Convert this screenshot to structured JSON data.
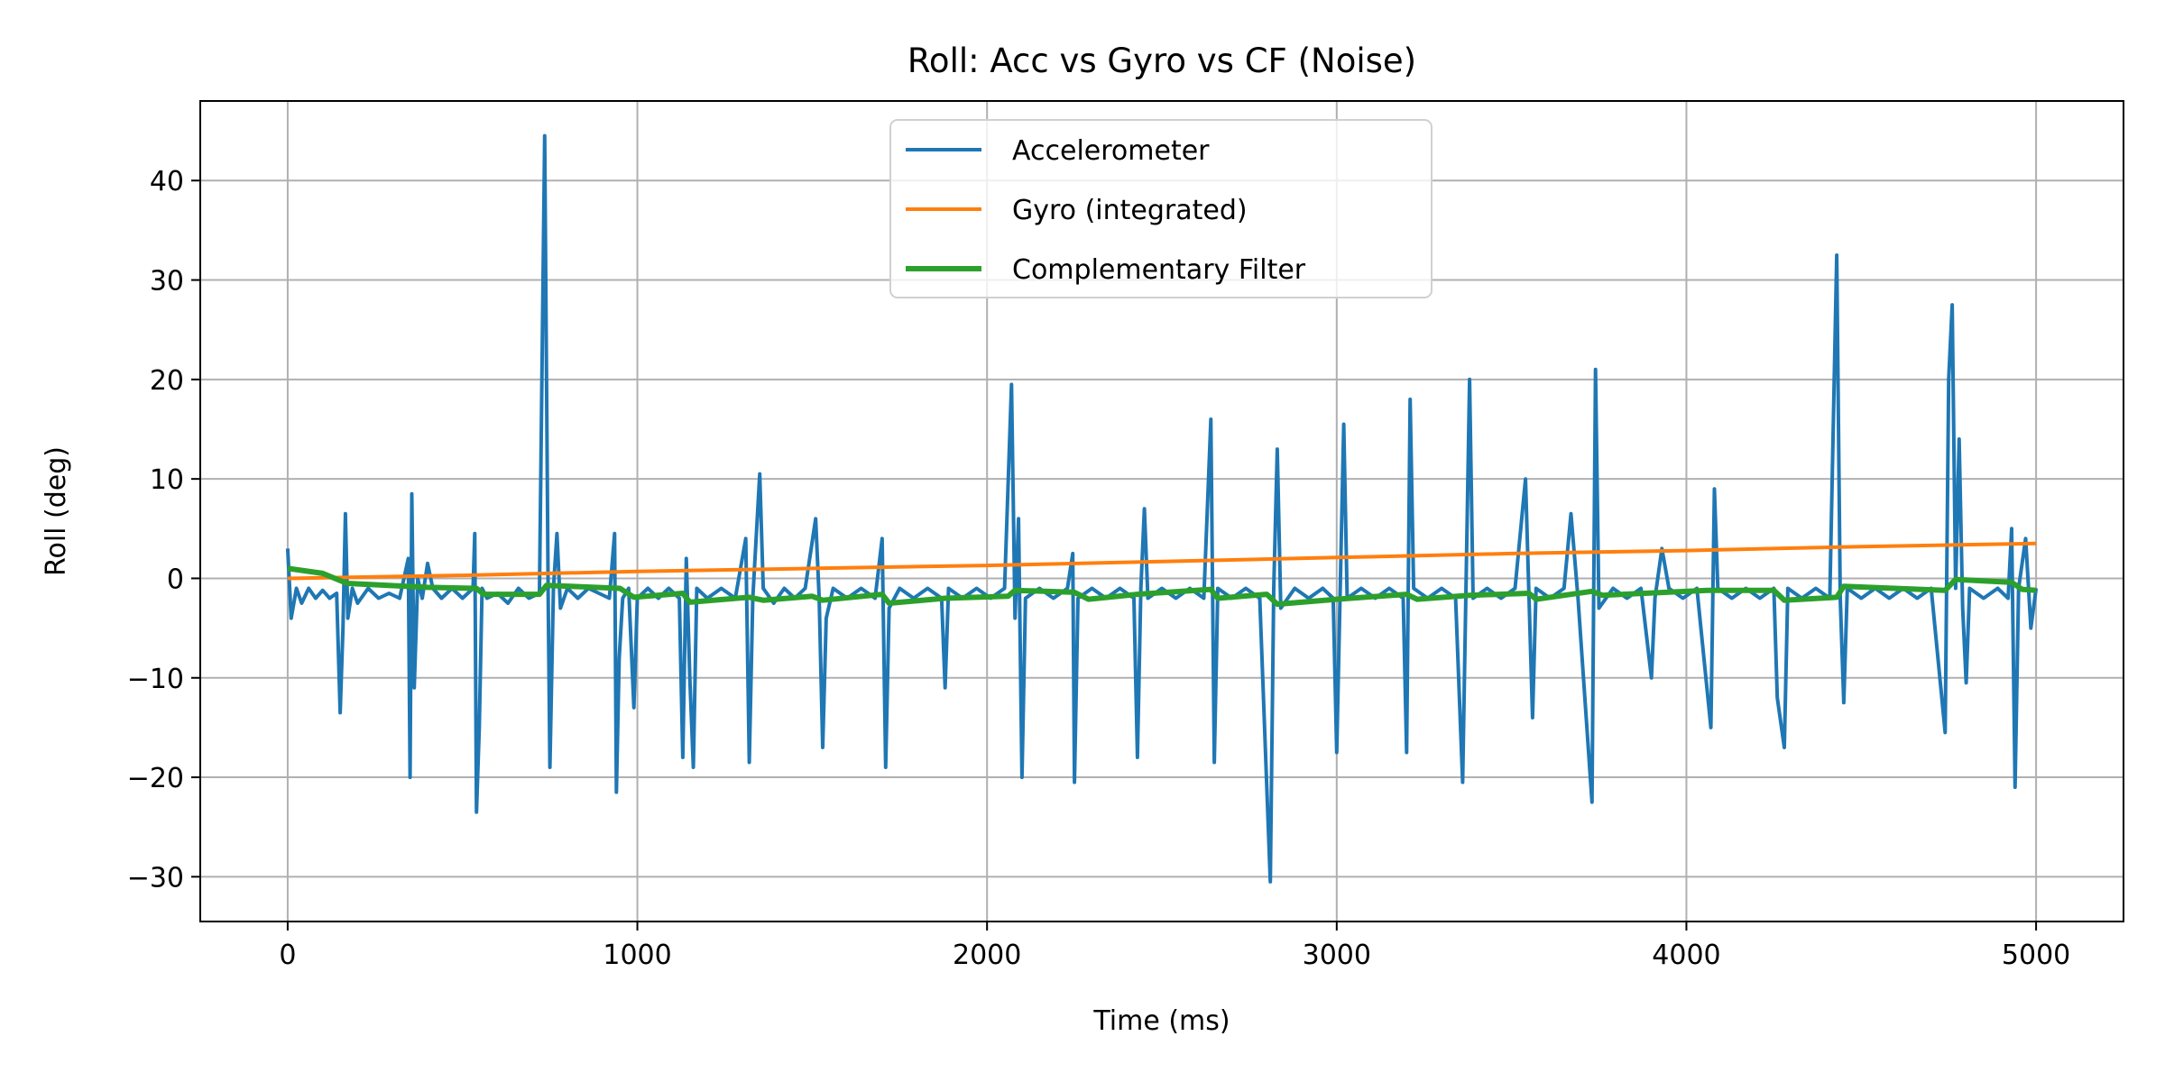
{
  "chart_data": {
    "type": "line",
    "title": "Roll:  Acc vs Gyro vs CF (Noise)",
    "xlabel": "Time (ms)",
    "ylabel": "Roll (deg)",
    "xlim": [
      -250,
      5250
    ],
    "ylim": [
      -34.5,
      48
    ],
    "xticks": [
      0,
      1000,
      2000,
      3000,
      4000,
      5000
    ],
    "xtick_labels": [
      "0",
      "1000",
      "2000",
      "3000",
      "4000",
      "5000"
    ],
    "yticks": [
      -30,
      -20,
      -10,
      0,
      10,
      20,
      30,
      40
    ],
    "ytick_labels": [
      "−30",
      "−20",
      "−10",
      "0",
      "10",
      "20",
      "30",
      "40"
    ],
    "grid": true,
    "legend_position": "upper center",
    "series": [
      {
        "name": "Accelerometer",
        "color": "#1f77b4",
        "points": [
          [
            0,
            3
          ],
          [
            10,
            -4
          ],
          [
            25,
            -1
          ],
          [
            40,
            -2.5
          ],
          [
            60,
            -1
          ],
          [
            80,
            -2
          ],
          [
            100,
            -1.2
          ],
          [
            120,
            -2
          ],
          [
            140,
            -1.5
          ],
          [
            150,
            -13.5
          ],
          [
            158,
            -5
          ],
          [
            165,
            6.5
          ],
          [
            172,
            -4
          ],
          [
            185,
            -1
          ],
          [
            200,
            -2.5
          ],
          [
            230,
            -1
          ],
          [
            260,
            -2
          ],
          [
            290,
            -1.5
          ],
          [
            320,
            -2
          ],
          [
            345,
            2
          ],
          [
            350,
            -20
          ],
          [
            355,
            8.5
          ],
          [
            362,
            -11
          ],
          [
            372,
            0
          ],
          [
            385,
            -2
          ],
          [
            400,
            1.5
          ],
          [
            415,
            -1
          ],
          [
            440,
            -2
          ],
          [
            470,
            -1
          ],
          [
            500,
            -2
          ],
          [
            530,
            -1
          ],
          [
            535,
            4.5
          ],
          [
            540,
            -23.5
          ],
          [
            548,
            -15
          ],
          [
            556,
            -1
          ],
          [
            570,
            -2
          ],
          [
            600,
            -1.5
          ],
          [
            630,
            -2.5
          ],
          [
            660,
            -1
          ],
          [
            690,
            -2
          ],
          [
            720,
            -1.5
          ],
          [
            735,
            44.5
          ],
          [
            745,
            -2
          ],
          [
            750,
            -19
          ],
          [
            760,
            -1
          ],
          [
            770,
            4.5
          ],
          [
            780,
            -3
          ],
          [
            800,
            -1
          ],
          [
            830,
            -2
          ],
          [
            860,
            -1
          ],
          [
            890,
            -1.5
          ],
          [
            920,
            -2
          ],
          [
            935,
            4.5
          ],
          [
            940,
            -21.5
          ],
          [
            948,
            -8
          ],
          [
            958,
            -2
          ],
          [
            975,
            -1
          ],
          [
            990,
            -13
          ],
          [
            1000,
            -2
          ],
          [
            1030,
            -1
          ],
          [
            1060,
            -2
          ],
          [
            1090,
            -1
          ],
          [
            1120,
            -2
          ],
          [
            1130,
            -18
          ],
          [
            1140,
            2
          ],
          [
            1150,
            -10
          ],
          [
            1160,
            -19
          ],
          [
            1170,
            -1
          ],
          [
            1200,
            -2
          ],
          [
            1240,
            -1
          ],
          [
            1280,
            -2
          ],
          [
            1310,
            4
          ],
          [
            1320,
            -18.5
          ],
          [
            1330,
            -2
          ],
          [
            1350,
            10.5
          ],
          [
            1360,
            -1
          ],
          [
            1390,
            -2.5
          ],
          [
            1420,
            -1
          ],
          [
            1450,
            -2
          ],
          [
            1480,
            -1
          ],
          [
            1510,
            6
          ],
          [
            1520,
            -2
          ],
          [
            1530,
            -17
          ],
          [
            1540,
            -4
          ],
          [
            1560,
            -1
          ],
          [
            1600,
            -2
          ],
          [
            1640,
            -1
          ],
          [
            1680,
            -2
          ],
          [
            1700,
            4
          ],
          [
            1710,
            -19
          ],
          [
            1720,
            -3
          ],
          [
            1750,
            -1
          ],
          [
            1790,
            -2
          ],
          [
            1830,
            -1
          ],
          [
            1870,
            -2
          ],
          [
            1880,
            -11
          ],
          [
            1890,
            -1
          ],
          [
            1930,
            -2
          ],
          [
            1970,
            -1
          ],
          [
            2010,
            -2
          ],
          [
            2050,
            -1
          ],
          [
            2070,
            19.5
          ],
          [
            2080,
            -4
          ],
          [
            2090,
            6
          ],
          [
            2100,
            -20
          ],
          [
            2110,
            -2
          ],
          [
            2150,
            -1
          ],
          [
            2190,
            -2
          ],
          [
            2230,
            -1
          ],
          [
            2245,
            2.5
          ],
          [
            2250,
            -20.5
          ],
          [
            2260,
            -2
          ],
          [
            2300,
            -1
          ],
          [
            2340,
            -2
          ],
          [
            2380,
            -1
          ],
          [
            2420,
            -2
          ],
          [
            2430,
            -18
          ],
          [
            2440,
            -1
          ],
          [
            2450,
            7
          ],
          [
            2460,
            -2
          ],
          [
            2500,
            -1
          ],
          [
            2540,
            -2
          ],
          [
            2580,
            -1
          ],
          [
            2620,
            -2
          ],
          [
            2640,
            16
          ],
          [
            2650,
            -18.5
          ],
          [
            2660,
            -1
          ],
          [
            2700,
            -2
          ],
          [
            2740,
            -1
          ],
          [
            2780,
            -2
          ],
          [
            2810,
            -30.5
          ],
          [
            2820,
            -1
          ],
          [
            2830,
            13
          ],
          [
            2840,
            -3
          ],
          [
            2880,
            -1
          ],
          [
            2920,
            -2
          ],
          [
            2960,
            -1
          ],
          [
            2990,
            -2
          ],
          [
            3000,
            -17.5
          ],
          [
            3010,
            -1
          ],
          [
            3020,
            15.5
          ],
          [
            3030,
            -2
          ],
          [
            3070,
            -1
          ],
          [
            3110,
            -2
          ],
          [
            3150,
            -1
          ],
          [
            3190,
            -2
          ],
          [
            3200,
            -17.5
          ],
          [
            3210,
            18
          ],
          [
            3220,
            -1
          ],
          [
            3260,
            -2
          ],
          [
            3300,
            -1
          ],
          [
            3340,
            -2
          ],
          [
            3360,
            -20.5
          ],
          [
            3380,
            20
          ],
          [
            3390,
            -2
          ],
          [
            3430,
            -1
          ],
          [
            3470,
            -2
          ],
          [
            3510,
            -1
          ],
          [
            3540,
            10
          ],
          [
            3560,
            -14
          ],
          [
            3570,
            -1
          ],
          [
            3610,
            -2
          ],
          [
            3650,
            -1
          ],
          [
            3670,
            6.5
          ],
          [
            3690,
            -2
          ],
          [
            3730,
            -22.5
          ],
          [
            3740,
            21
          ],
          [
            3750,
            -3
          ],
          [
            3790,
            -1
          ],
          [
            3830,
            -2
          ],
          [
            3870,
            -1
          ],
          [
            3900,
            -10
          ],
          [
            3910,
            -2
          ],
          [
            3930,
            3
          ],
          [
            3950,
            -1
          ],
          [
            3990,
            -2
          ],
          [
            4030,
            -1
          ],
          [
            4070,
            -15
          ],
          [
            4080,
            9
          ],
          [
            4090,
            -1
          ],
          [
            4130,
            -2
          ],
          [
            4170,
            -1
          ],
          [
            4210,
            -2
          ],
          [
            4250,
            -1
          ],
          [
            4260,
            -12
          ],
          [
            4280,
            -17
          ],
          [
            4290,
            -1
          ],
          [
            4330,
            -2
          ],
          [
            4370,
            -1
          ],
          [
            4410,
            -2
          ],
          [
            4430,
            32.5
          ],
          [
            4440,
            -2
          ],
          [
            4450,
            -12.5
          ],
          [
            4460,
            -1
          ],
          [
            4500,
            -2
          ],
          [
            4540,
            -1
          ],
          [
            4580,
            -2
          ],
          [
            4620,
            -1
          ],
          [
            4660,
            -2
          ],
          [
            4700,
            -1
          ],
          [
            4740,
            -15.5
          ],
          [
            4750,
            20
          ],
          [
            4760,
            27.5
          ],
          [
            4770,
            -1
          ],
          [
            4780,
            14
          ],
          [
            4790,
            -3
          ],
          [
            4800,
            -10.5
          ],
          [
            4810,
            -1
          ],
          [
            4850,
            -2
          ],
          [
            4890,
            -1
          ],
          [
            4920,
            -2
          ],
          [
            4930,
            5
          ],
          [
            4940,
            -21
          ],
          [
            4950,
            -1
          ],
          [
            4970,
            4
          ],
          [
            4985,
            -5
          ],
          [
            5000,
            -1
          ]
        ]
      },
      {
        "name": "Gyro (integrated)",
        "color": "#ff7f0e",
        "points": [
          [
            0,
            0
          ],
          [
            500,
            0.3
          ],
          [
            1000,
            0.7
          ],
          [
            1500,
            1.0
          ],
          [
            2000,
            1.3
          ],
          [
            2500,
            1.7
          ],
          [
            3000,
            2.1
          ],
          [
            3500,
            2.5
          ],
          [
            4000,
            2.8
          ],
          [
            4500,
            3.2
          ],
          [
            5000,
            3.5
          ]
        ]
      },
      {
        "name": "Complementary Filter",
        "color": "#2ca02c",
        "points": [
          [
            0,
            1
          ],
          [
            100,
            0.5
          ],
          [
            170,
            -0.5
          ],
          [
            400,
            -0.9
          ],
          [
            540,
            -1
          ],
          [
            560,
            -1.6
          ],
          [
            720,
            -1.6
          ],
          [
            740,
            -0.7
          ],
          [
            950,
            -1.0
          ],
          [
            990,
            -1.9
          ],
          [
            1130,
            -1.5
          ],
          [
            1150,
            -2.4
          ],
          [
            1320,
            -1.9
          ],
          [
            1360,
            -2.2
          ],
          [
            1500,
            -1.8
          ],
          [
            1530,
            -2.2
          ],
          [
            1700,
            -1.6
          ],
          [
            1720,
            -2.5
          ],
          [
            1880,
            -2.0
          ],
          [
            2060,
            -1.8
          ],
          [
            2080,
            -1.2
          ],
          [
            2250,
            -1.4
          ],
          [
            2290,
            -2.1
          ],
          [
            2430,
            -1.6
          ],
          [
            2640,
            -1.1
          ],
          [
            2660,
            -2.0
          ],
          [
            2800,
            -1.6
          ],
          [
            2830,
            -2.6
          ],
          [
            3000,
            -2.1
          ],
          [
            3200,
            -1.6
          ],
          [
            3230,
            -2.1
          ],
          [
            3380,
            -1.7
          ],
          [
            3550,
            -1.5
          ],
          [
            3570,
            -2.1
          ],
          [
            3730,
            -1.3
          ],
          [
            3760,
            -1.7
          ],
          [
            4060,
            -1.2
          ],
          [
            4250,
            -1.2
          ],
          [
            4280,
            -2.2
          ],
          [
            4430,
            -1.9
          ],
          [
            4450,
            -0.8
          ],
          [
            4740,
            -1.2
          ],
          [
            4770,
            -0.1
          ],
          [
            4930,
            -0.4
          ],
          [
            4960,
            -1.1
          ],
          [
            5000,
            -1.2
          ]
        ]
      }
    ]
  }
}
